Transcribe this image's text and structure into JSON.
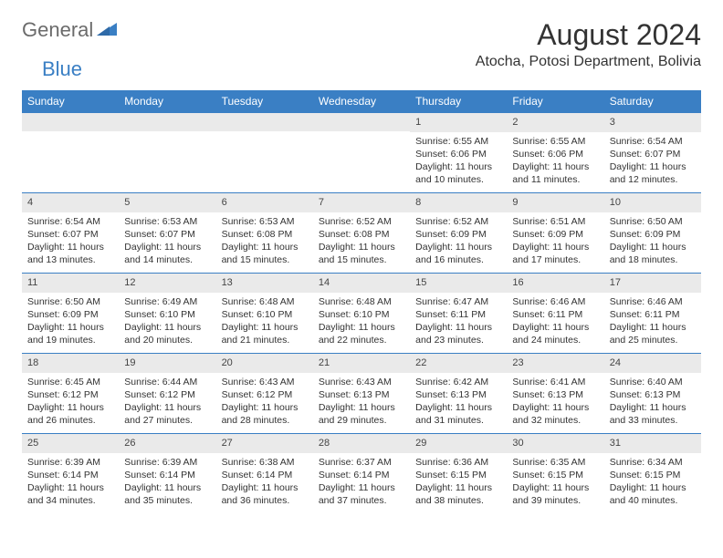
{
  "logo": {
    "word1": "General",
    "word2": "Blue"
  },
  "title": "August 2024",
  "location": "Atocha, Potosi Department, Bolivia",
  "colors": {
    "header_bg": "#3a7fc4",
    "header_text": "#ffffff",
    "daynum_bg": "#eaeaea",
    "border": "#3a7fc4",
    "text": "#333333",
    "logo_gray": "#6b6b6b",
    "logo_blue": "#3a7fc4",
    "page_bg": "#ffffff"
  },
  "weekdays": [
    "Sunday",
    "Monday",
    "Tuesday",
    "Wednesday",
    "Thursday",
    "Friday",
    "Saturday"
  ],
  "first_weekday_index": 4,
  "days": [
    {
      "n": 1,
      "sunrise": "6:55 AM",
      "sunset": "6:06 PM",
      "daylight": "11 hours and 10 minutes."
    },
    {
      "n": 2,
      "sunrise": "6:55 AM",
      "sunset": "6:06 PM",
      "daylight": "11 hours and 11 minutes."
    },
    {
      "n": 3,
      "sunrise": "6:54 AM",
      "sunset": "6:07 PM",
      "daylight": "11 hours and 12 minutes."
    },
    {
      "n": 4,
      "sunrise": "6:54 AM",
      "sunset": "6:07 PM",
      "daylight": "11 hours and 13 minutes."
    },
    {
      "n": 5,
      "sunrise": "6:53 AM",
      "sunset": "6:07 PM",
      "daylight": "11 hours and 14 minutes."
    },
    {
      "n": 6,
      "sunrise": "6:53 AM",
      "sunset": "6:08 PM",
      "daylight": "11 hours and 15 minutes."
    },
    {
      "n": 7,
      "sunrise": "6:52 AM",
      "sunset": "6:08 PM",
      "daylight": "11 hours and 15 minutes."
    },
    {
      "n": 8,
      "sunrise": "6:52 AM",
      "sunset": "6:09 PM",
      "daylight": "11 hours and 16 minutes."
    },
    {
      "n": 9,
      "sunrise": "6:51 AM",
      "sunset": "6:09 PM",
      "daylight": "11 hours and 17 minutes."
    },
    {
      "n": 10,
      "sunrise": "6:50 AM",
      "sunset": "6:09 PM",
      "daylight": "11 hours and 18 minutes."
    },
    {
      "n": 11,
      "sunrise": "6:50 AM",
      "sunset": "6:09 PM",
      "daylight": "11 hours and 19 minutes."
    },
    {
      "n": 12,
      "sunrise": "6:49 AM",
      "sunset": "6:10 PM",
      "daylight": "11 hours and 20 minutes."
    },
    {
      "n": 13,
      "sunrise": "6:48 AM",
      "sunset": "6:10 PM",
      "daylight": "11 hours and 21 minutes."
    },
    {
      "n": 14,
      "sunrise": "6:48 AM",
      "sunset": "6:10 PM",
      "daylight": "11 hours and 22 minutes."
    },
    {
      "n": 15,
      "sunrise": "6:47 AM",
      "sunset": "6:11 PM",
      "daylight": "11 hours and 23 minutes."
    },
    {
      "n": 16,
      "sunrise": "6:46 AM",
      "sunset": "6:11 PM",
      "daylight": "11 hours and 24 minutes."
    },
    {
      "n": 17,
      "sunrise": "6:46 AM",
      "sunset": "6:11 PM",
      "daylight": "11 hours and 25 minutes."
    },
    {
      "n": 18,
      "sunrise": "6:45 AM",
      "sunset": "6:12 PM",
      "daylight": "11 hours and 26 minutes."
    },
    {
      "n": 19,
      "sunrise": "6:44 AM",
      "sunset": "6:12 PM",
      "daylight": "11 hours and 27 minutes."
    },
    {
      "n": 20,
      "sunrise": "6:43 AM",
      "sunset": "6:12 PM",
      "daylight": "11 hours and 28 minutes."
    },
    {
      "n": 21,
      "sunrise": "6:43 AM",
      "sunset": "6:13 PM",
      "daylight": "11 hours and 29 minutes."
    },
    {
      "n": 22,
      "sunrise": "6:42 AM",
      "sunset": "6:13 PM",
      "daylight": "11 hours and 31 minutes."
    },
    {
      "n": 23,
      "sunrise": "6:41 AM",
      "sunset": "6:13 PM",
      "daylight": "11 hours and 32 minutes."
    },
    {
      "n": 24,
      "sunrise": "6:40 AM",
      "sunset": "6:13 PM",
      "daylight": "11 hours and 33 minutes."
    },
    {
      "n": 25,
      "sunrise": "6:39 AM",
      "sunset": "6:14 PM",
      "daylight": "11 hours and 34 minutes."
    },
    {
      "n": 26,
      "sunrise": "6:39 AM",
      "sunset": "6:14 PM",
      "daylight": "11 hours and 35 minutes."
    },
    {
      "n": 27,
      "sunrise": "6:38 AM",
      "sunset": "6:14 PM",
      "daylight": "11 hours and 36 minutes."
    },
    {
      "n": 28,
      "sunrise": "6:37 AM",
      "sunset": "6:14 PM",
      "daylight": "11 hours and 37 minutes."
    },
    {
      "n": 29,
      "sunrise": "6:36 AM",
      "sunset": "6:15 PM",
      "daylight": "11 hours and 38 minutes."
    },
    {
      "n": 30,
      "sunrise": "6:35 AM",
      "sunset": "6:15 PM",
      "daylight": "11 hours and 39 minutes."
    },
    {
      "n": 31,
      "sunrise": "6:34 AM",
      "sunset": "6:15 PM",
      "daylight": "11 hours and 40 minutes."
    }
  ],
  "labels": {
    "sunrise_prefix": "Sunrise: ",
    "sunset_prefix": "Sunset: ",
    "daylight_prefix": "Daylight: "
  }
}
